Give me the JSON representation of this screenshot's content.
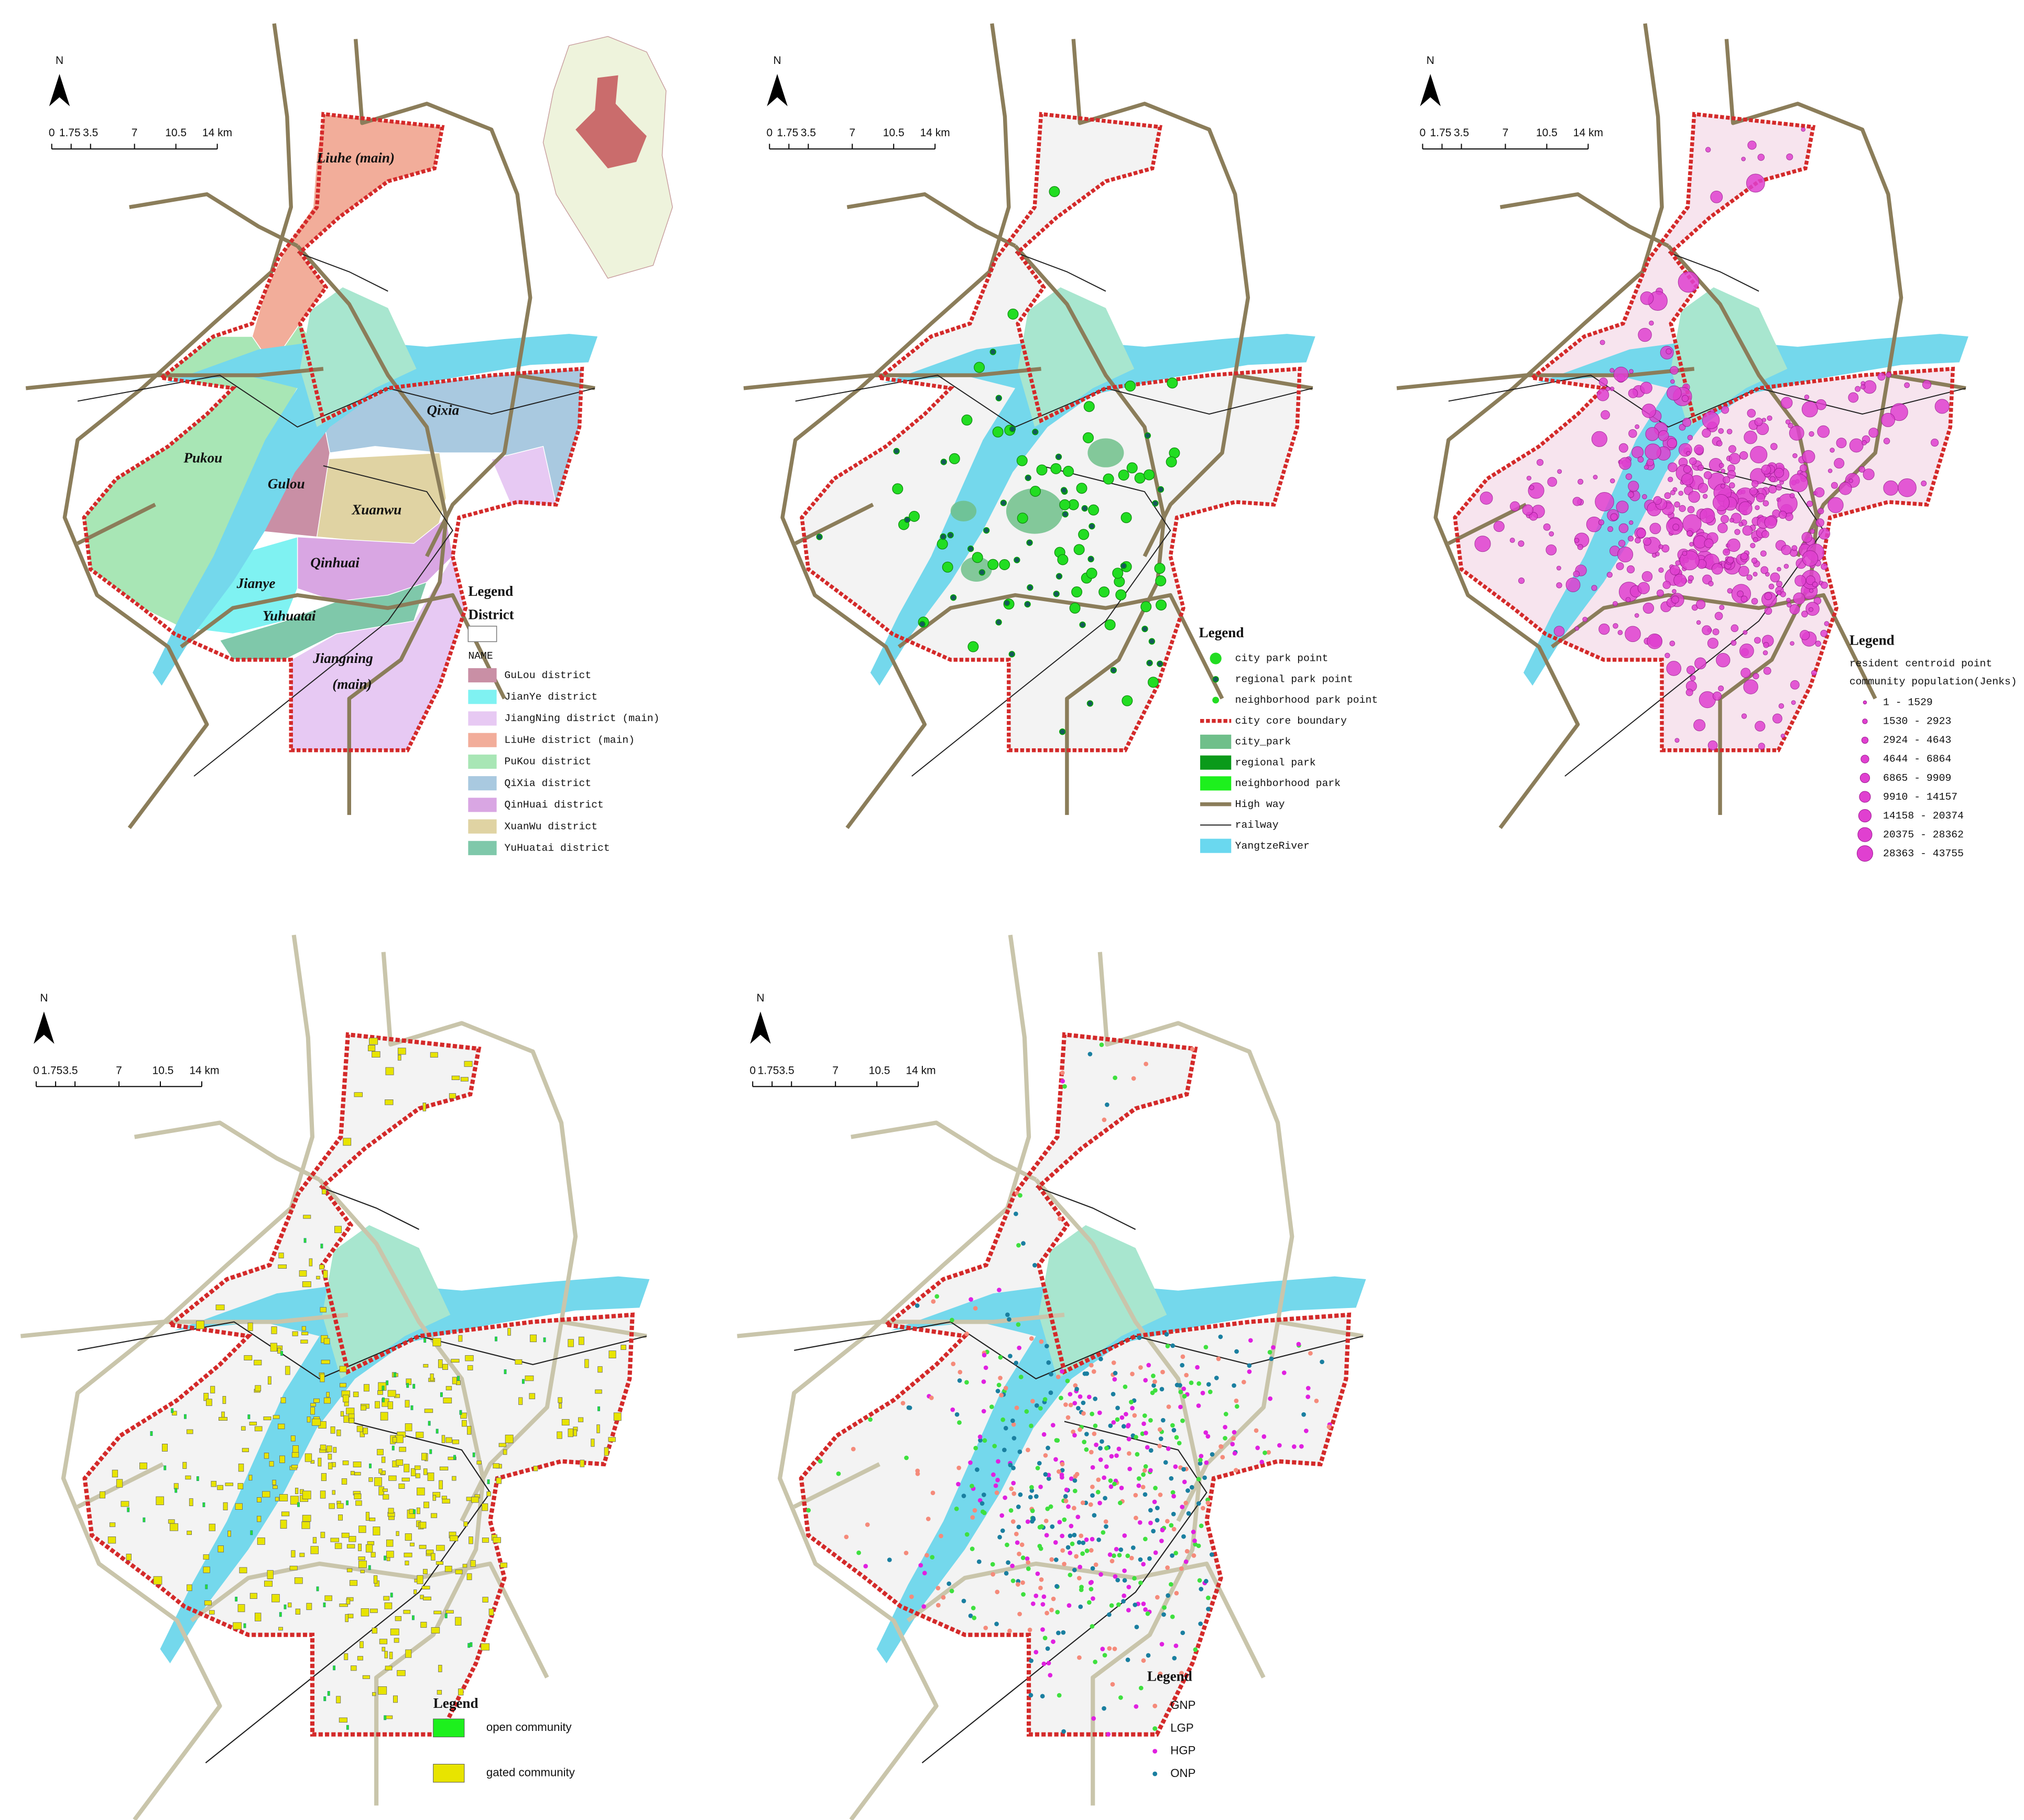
{
  "panels": [
    {
      "north": "N",
      "scale_labels": [
        "0",
        "1.75",
        "3.5",
        "7",
        "10.5",
        "14 km"
      ],
      "district_labels": [
        "Liuhe (main)",
        "Pukou",
        "Gulou",
        "Xuanwu",
        "Qixia",
        "Jianye",
        "Qinhuai",
        "Yuhuatai",
        "Jiangning",
        "(main)"
      ],
      "legend": {
        "title": "Legend",
        "subtitle": "District",
        "field": "NAME",
        "items": [
          "GuLou district",
          "JianYe district",
          "JiangNing district (main)",
          "LiuHe district (main)",
          "PuKou district",
          "QiXia district",
          "QinHuai district",
          "XuanWu district",
          "YuHuatai district"
        ]
      }
    },
    {
      "north": "N",
      "scale_labels": [
        "0",
        "1.75",
        "3.5",
        "7",
        "10.5",
        "14 km"
      ],
      "legend": {
        "title": "Legend",
        "items": [
          "city park point",
          "regional park point",
          "neighborhood park point",
          "city core boundary",
          "city_park",
          "regional park",
          "neighborhood park",
          "High way",
          "railway",
          "YangtzeRiver"
        ]
      }
    },
    {
      "north": "N",
      "scale_labels": [
        "0",
        "1.75",
        "3.5",
        "7",
        "10.5",
        "14 km"
      ],
      "legend": {
        "title": "Legend",
        "subtitle": "resident centroid point",
        "field": "community population(Jenks)",
        "items": [
          "1 - 1529",
          "1530 - 2923",
          "2924 - 4643",
          "4644 - 6864",
          "6865 - 9909",
          "9910 - 14157",
          "14158 - 20374",
          "20375 - 28362",
          "28363 - 43755"
        ]
      }
    },
    {
      "north": "N",
      "scale_labels": [
        "0",
        "1.753.5",
        "7",
        "10.5",
        "14 km"
      ],
      "legend": {
        "title": "Legend",
        "items": [
          "open community",
          "gated community"
        ]
      }
    },
    {
      "north": "N",
      "scale_labels": [
        "0",
        "1.753.5",
        "7",
        "10.5",
        "14 km"
      ],
      "legend": {
        "title": "Legend",
        "items": [
          "GNP",
          "LGP",
          "HGP",
          "ONP"
        ]
      }
    }
  ]
}
